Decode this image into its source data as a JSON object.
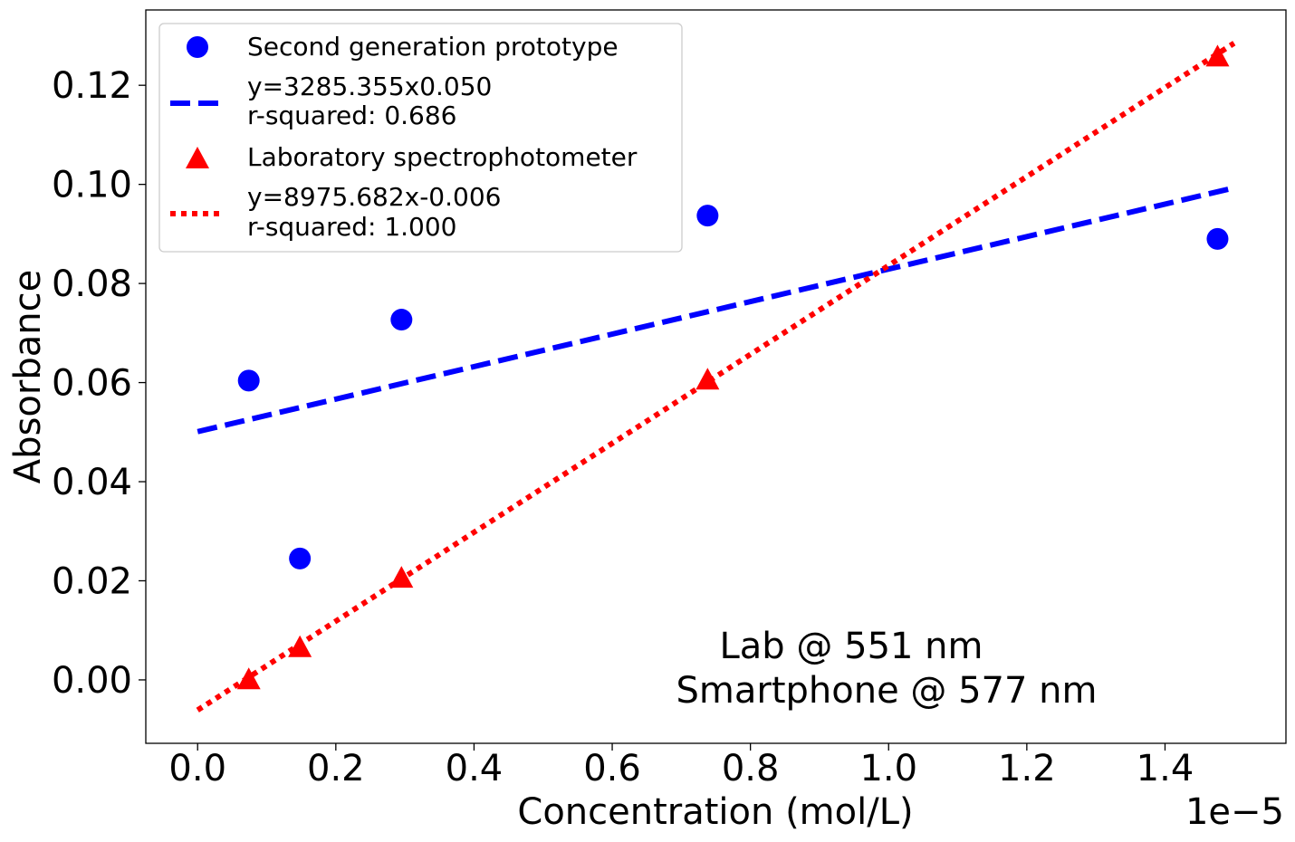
{
  "chart_data": {
    "type": "scatter",
    "title": "",
    "xlabel": "Concentration (mol/L)",
    "ylabel": "Absorbance",
    "x_offset_label": "1e−5",
    "xlim": [
      -0.075,
      1.575
    ],
    "ylim": [
      -0.0128,
      0.1352
    ],
    "x_ticks": [
      0.0,
      0.2,
      0.4,
      0.6,
      0.8,
      1.0,
      1.2,
      1.4
    ],
    "x_tick_labels": [
      "0.0",
      "0.2",
      "0.4",
      "0.6",
      "0.8",
      "1.0",
      "1.2",
      "1.4"
    ],
    "y_ticks": [
      0.0,
      0.02,
      0.04,
      0.06,
      0.08,
      0.1,
      0.12
    ],
    "y_tick_labels": [
      "0.00",
      "0.02",
      "0.04",
      "0.06",
      "0.08",
      "0.10",
      "0.12"
    ],
    "grid": false,
    "legend_position": "upper-left",
    "series": [
      {
        "name": "Second generation prototype",
        "kind": "scatter",
        "marker": "circle",
        "color": "#0000ff",
        "x": [
          0.074,
          0.148,
          0.295,
          0.738,
          1.476
        ],
        "y": [
          0.0604,
          0.0245,
          0.0727,
          0.0937,
          0.089
        ]
      },
      {
        "name": "y=3285.355x0.050\nr-squared: 0.686",
        "kind": "line",
        "style": "dashed",
        "color": "#0000ff",
        "x": [
          0.0,
          1.5
        ],
        "y": [
          0.0501,
          0.0993
        ]
      },
      {
        "name": "Laboratory spectrophotometer",
        "kind": "scatter",
        "marker": "triangle",
        "color": "#ff0000",
        "x": [
          0.074,
          0.148,
          0.295,
          0.738,
          1.476
        ],
        "y": [
          0.0003,
          0.0068,
          0.0208,
          0.0608,
          0.126
        ]
      },
      {
        "name": "y=8975.682x-0.006\nr-squared: 1.000",
        "kind": "line",
        "style": "dotted",
        "color": "#ff0000",
        "x": [
          0.0,
          1.5
        ],
        "y": [
          -0.0061,
          0.1285
        ]
      }
    ],
    "legend": [
      {
        "label": "Second generation prototype",
        "marker": "circle",
        "color": "#0000ff"
      },
      {
        "label_lines": [
          "y=3285.355x0.050",
          "r-squared: 0.686"
        ],
        "marker": "dashed",
        "color": "#0000ff"
      },
      {
        "label": "Laboratory spectrophotometer",
        "marker": "triangle",
        "color": "#ff0000"
      },
      {
        "label_lines": [
          "y=8975.682x-0.006",
          "r-squared: 1.000"
        ],
        "marker": "dotted",
        "color": "#ff0000"
      }
    ],
    "annotation_lines": [
      "Lab @ 551 nm",
      "Smartphone @ 577 nm"
    ]
  }
}
